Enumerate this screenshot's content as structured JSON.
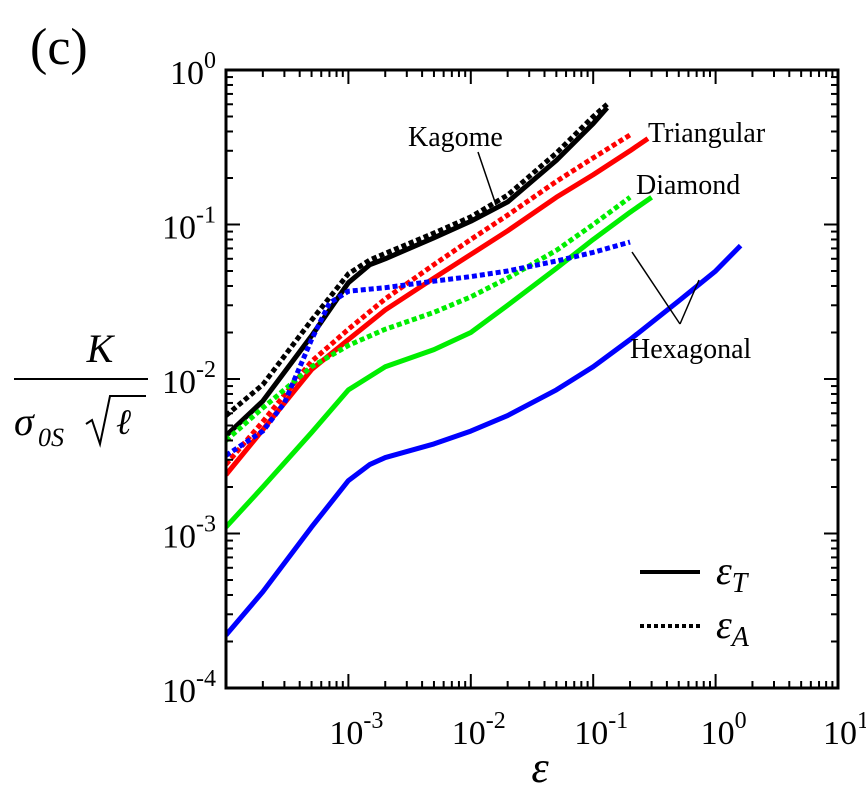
{
  "chart_data": {
    "type": "line",
    "panel_label": "(c)",
    "xlabel": "ε",
    "ylabel": {
      "numerator": "K",
      "denominator_main": "σ",
      "denominator_sub": "0S",
      "denominator_radicand": "ℓ"
    },
    "xscale": "log",
    "yscale": "log",
    "xlim": [
      0.0001,
      10
    ],
    "ylim": [
      0.0001,
      1
    ],
    "x_ticks": [
      {
        "value": 0.001,
        "base": "10",
        "exp": "-3"
      },
      {
        "value": 0.01,
        "base": "10",
        "exp": "-2"
      },
      {
        "value": 0.1,
        "base": "10",
        "exp": "-1"
      },
      {
        "value": 1,
        "base": "10",
        "exp": "0"
      },
      {
        "value": 10,
        "base": "10",
        "exp": "1"
      }
    ],
    "y_ticks": [
      {
        "value": 0.0001,
        "base": "10",
        "exp": "-4"
      },
      {
        "value": 0.001,
        "base": "10",
        "exp": "-3"
      },
      {
        "value": 0.01,
        "base": "10",
        "exp": "-2"
      },
      {
        "value": 0.1,
        "base": "10",
        "exp": "-1"
      },
      {
        "value": 1,
        "base": "10",
        "exp": "0"
      }
    ],
    "grid": false,
    "legend": {
      "placement": "bottom-right",
      "entries": [
        {
          "label_main": "ε",
          "label_sub": "T",
          "style": "solid"
        },
        {
          "label_main": "ε",
          "label_sub": "A",
          "style": "dotted"
        }
      ]
    },
    "annotations": [
      {
        "text": "Kagome",
        "points_to": "Kagome"
      },
      {
        "text": "Triangular",
        "points_to": "Triangular"
      },
      {
        "text": "Diamond",
        "points_to": "Diamond"
      },
      {
        "text": "Hexagonal",
        "points_to": "Hexagonal"
      }
    ],
    "series": [
      {
        "lattice": "Kagome",
        "measure": "T",
        "color": "#000000",
        "style": "solid",
        "x": [
          0.0001,
          0.0002,
          0.0005,
          0.001,
          0.0015,
          0.002,
          0.005,
          0.01,
          0.02,
          0.05,
          0.1,
          0.13
        ],
        "y": [
          0.0043,
          0.0072,
          0.019,
          0.042,
          0.055,
          0.06,
          0.082,
          0.105,
          0.14,
          0.26,
          0.45,
          0.57
        ]
      },
      {
        "lattice": "Kagome",
        "measure": "A",
        "color": "#000000",
        "style": "dotted",
        "x": [
          0.0001,
          0.0002,
          0.0005,
          0.001,
          0.0015,
          0.002,
          0.005,
          0.01,
          0.02,
          0.05,
          0.1,
          0.13
        ],
        "y": [
          0.0058,
          0.0092,
          0.024,
          0.048,
          0.059,
          0.065,
          0.088,
          0.112,
          0.155,
          0.29,
          0.5,
          0.6
        ]
      },
      {
        "lattice": "Triangular",
        "measure": "T",
        "color": "#ff0000",
        "style": "solid",
        "x": [
          0.0001,
          0.0002,
          0.0005,
          0.001,
          0.002,
          0.005,
          0.01,
          0.02,
          0.05,
          0.1,
          0.2,
          0.28
        ],
        "y": [
          0.0024,
          0.0047,
          0.0115,
          0.018,
          0.028,
          0.045,
          0.064,
          0.091,
          0.15,
          0.21,
          0.3,
          0.36
        ]
      },
      {
        "lattice": "Triangular",
        "measure": "A",
        "color": "#ff0000",
        "style": "dotted",
        "x": [
          0.0001,
          0.0002,
          0.0005,
          0.001,
          0.002,
          0.005,
          0.01,
          0.02,
          0.05,
          0.1,
          0.2
        ],
        "y": [
          0.0028,
          0.0053,
          0.013,
          0.021,
          0.033,
          0.055,
          0.08,
          0.115,
          0.19,
          0.27,
          0.38
        ]
      },
      {
        "lattice": "Diamond",
        "measure": "T",
        "color": "#00ee00",
        "style": "solid",
        "x": [
          0.0001,
          0.0002,
          0.0005,
          0.001,
          0.002,
          0.005,
          0.01,
          0.02,
          0.05,
          0.1,
          0.2,
          0.3
        ],
        "y": [
          0.0011,
          0.002,
          0.0045,
          0.0085,
          0.012,
          0.0155,
          0.02,
          0.03,
          0.052,
          0.08,
          0.12,
          0.15
        ]
      },
      {
        "lattice": "Diamond",
        "measure": "A",
        "color": "#00ee00",
        "style": "dotted",
        "x": [
          0.0001,
          0.0002,
          0.0005,
          0.001,
          0.002,
          0.005,
          0.01,
          0.02,
          0.05,
          0.1,
          0.2
        ],
        "y": [
          0.004,
          0.0065,
          0.012,
          0.0165,
          0.021,
          0.027,
          0.034,
          0.045,
          0.068,
          0.1,
          0.15
        ]
      },
      {
        "lattice": "Hexagonal",
        "measure": "T",
        "color": "#0000ff",
        "style": "solid",
        "x": [
          0.0001,
          0.0002,
          0.0005,
          0.001,
          0.0015,
          0.002,
          0.005,
          0.01,
          0.02,
          0.05,
          0.1,
          0.2,
          0.5,
          1,
          1.6
        ],
        "y": [
          0.00022,
          0.00042,
          0.0011,
          0.0022,
          0.0028,
          0.0031,
          0.0038,
          0.0046,
          0.0058,
          0.0085,
          0.012,
          0.018,
          0.032,
          0.05,
          0.073
        ]
      },
      {
        "lattice": "Hexagonal",
        "measure": "A",
        "color": "#0000ff",
        "style": "dotted",
        "x": [
          0.0001,
          0.0002,
          0.0003,
          0.0005,
          0.0007,
          0.001,
          0.002,
          0.005,
          0.01,
          0.02,
          0.05,
          0.1,
          0.2
        ],
        "y": [
          0.0032,
          0.0046,
          0.007,
          0.018,
          0.031,
          0.037,
          0.039,
          0.043,
          0.046,
          0.05,
          0.058,
          0.066,
          0.077
        ]
      }
    ]
  }
}
